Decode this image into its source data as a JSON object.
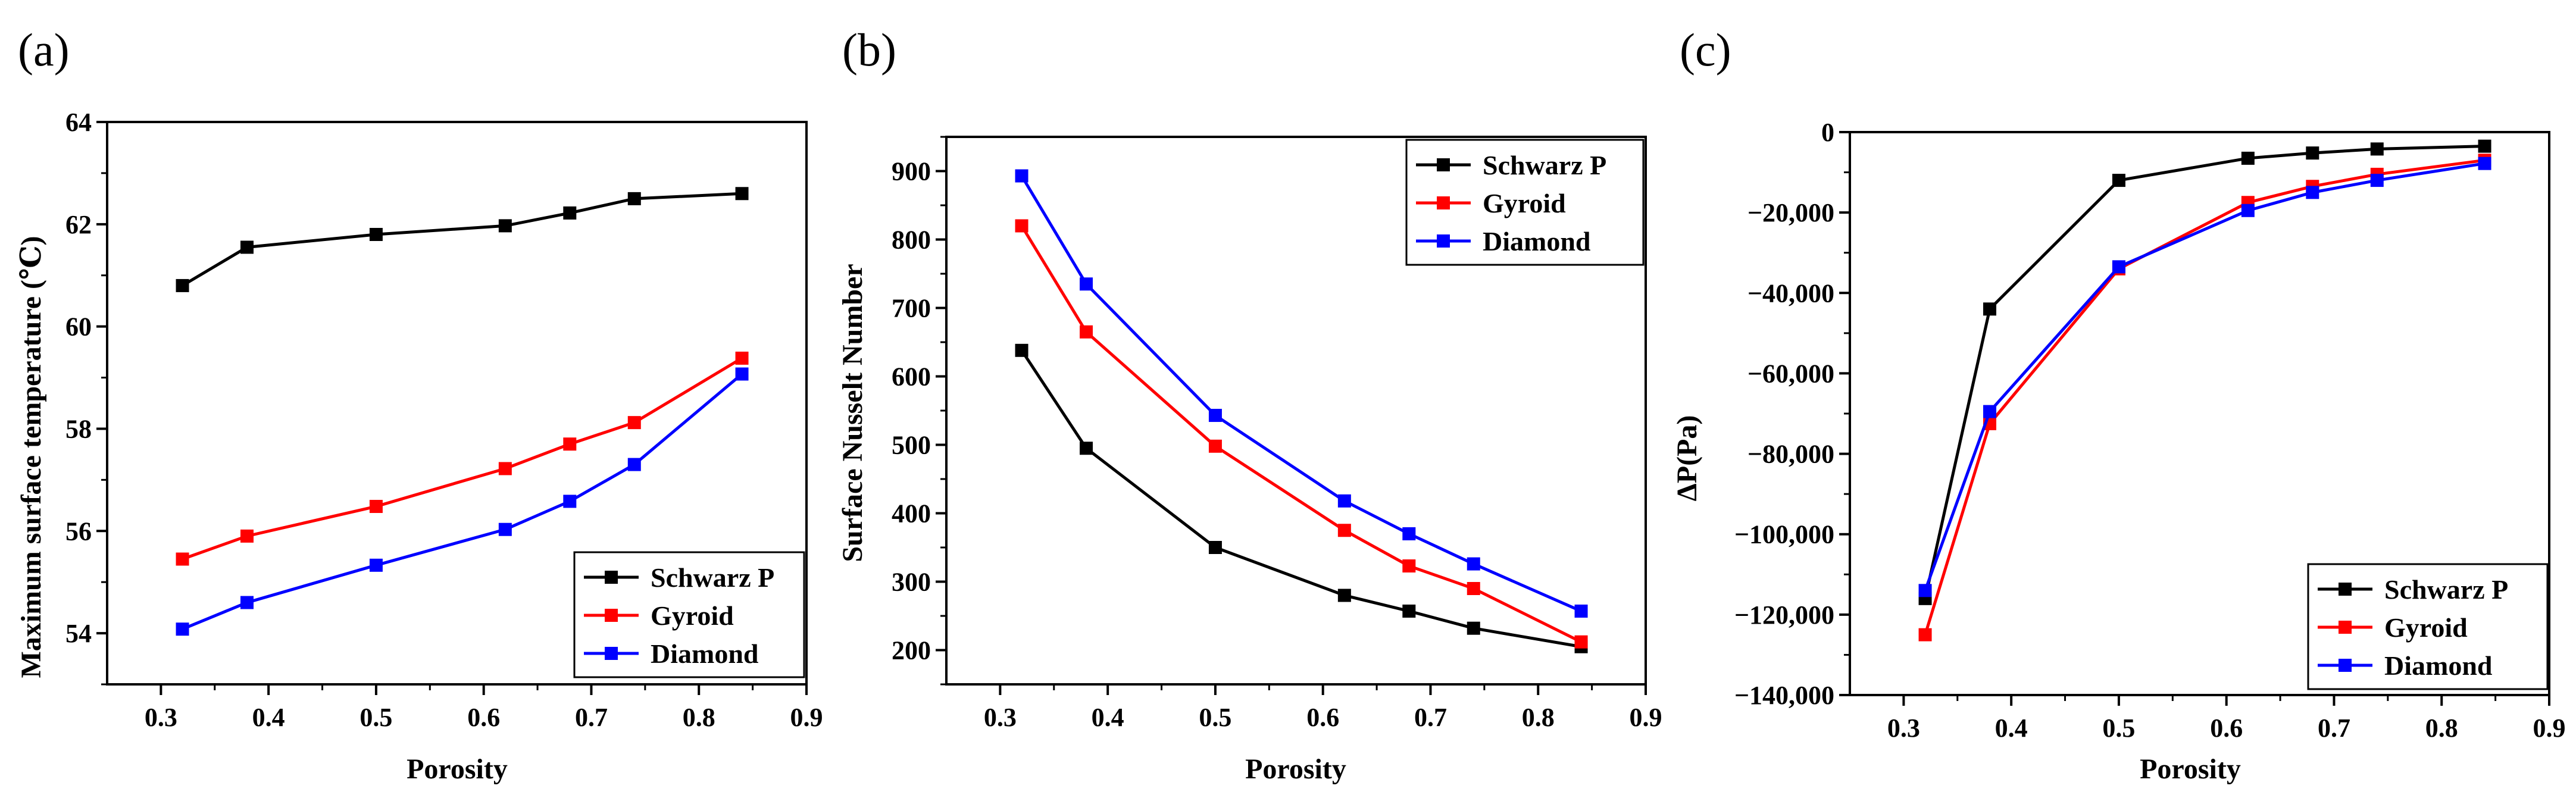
{
  "chart_data": [
    {
      "type": "line",
      "panel_label": "(a)",
      "xlabel": "Porosity",
      "ylabel": "Maximum surface temperature (℃)",
      "xlim": [
        0.25,
        0.9
      ],
      "ylim": [
        53,
        64
      ],
      "xticks": [
        "0.3",
        "0.4",
        "0.5",
        "0.6",
        "0.7",
        "0.8",
        "0.9"
      ],
      "xtick_values": [
        0.3,
        0.4,
        0.5,
        0.6,
        0.7,
        0.8,
        0.9
      ],
      "yticks": [
        "54",
        "56",
        "58",
        "60",
        "62",
        "64"
      ],
      "ytick_values": [
        54,
        56,
        58,
        60,
        62,
        64
      ],
      "legend_position": "bottom-right",
      "x": [
        0.32,
        0.38,
        0.5,
        0.62,
        0.68,
        0.74,
        0.84
      ],
      "series": [
        {
          "name": "Schwarz P",
          "color": "#000000",
          "values": [
            60.8,
            61.55,
            61.8,
            61.97,
            62.22,
            62.5,
            62.6
          ]
        },
        {
          "name": "Gyroid",
          "color": "#ff0000",
          "values": [
            55.45,
            55.9,
            56.48,
            57.22,
            57.7,
            58.12,
            59.38
          ]
        },
        {
          "name": "Diamond",
          "color": "#0000ff",
          "values": [
            54.08,
            54.6,
            55.33,
            56.03,
            56.58,
            57.3,
            59.07
          ]
        }
      ]
    },
    {
      "type": "line",
      "panel_label": "(b)",
      "xlabel": "Porosity",
      "ylabel": "Surface Nusselt Number",
      "xlim": [
        0.25,
        0.9
      ],
      "ylim": [
        150,
        950
      ],
      "xticks": [
        "0.3",
        "0.4",
        "0.5",
        "0.6",
        "0.7",
        "0.8",
        "0.9"
      ],
      "xtick_values": [
        0.3,
        0.4,
        0.5,
        0.6,
        0.7,
        0.8,
        0.9
      ],
      "yticks": [
        "200",
        "300",
        "400",
        "500",
        "600",
        "700",
        "800",
        "900"
      ],
      "ytick_values": [
        200,
        300,
        400,
        500,
        600,
        700,
        800,
        900
      ],
      "legend_position": "top-right",
      "x": [
        0.32,
        0.38,
        0.5,
        0.62,
        0.68,
        0.74,
        0.84
      ],
      "series": [
        {
          "name": "Schwarz P",
          "color": "#000000",
          "values": [
            638,
            495,
            350,
            280,
            257,
            232,
            205
          ]
        },
        {
          "name": "Gyroid",
          "color": "#ff0000",
          "values": [
            820,
            665,
            498,
            375,
            323,
            290,
            212
          ]
        },
        {
          "name": "Diamond",
          "color": "#0000ff",
          "values": [
            893,
            735,
            543,
            418,
            370,
            326,
            257
          ]
        }
      ]
    },
    {
      "type": "line",
      "panel_label": "(c)",
      "xlabel": "Porosity",
      "ylabel": "ΔP(Pa)",
      "xlim": [
        0.25,
        0.9
      ],
      "ylim": [
        -140000,
        0
      ],
      "xticks": [
        "0.3",
        "0.4",
        "0.5",
        "0.6",
        "0.7",
        "0.8",
        "0.9"
      ],
      "xtick_values": [
        0.3,
        0.4,
        0.5,
        0.6,
        0.7,
        0.8,
        0.9
      ],
      "yticks": [
        "0",
        "−20,000",
        "−40,000",
        "−60,000",
        "−80,000",
        "−100,000",
        "−120,000",
        "−140,000"
      ],
      "ytick_values": [
        0,
        -20000,
        -40000,
        -60000,
        -80000,
        -100000,
        -120000,
        -140000
      ],
      "legend_position": "bottom-right",
      "x": [
        0.32,
        0.38,
        0.5,
        0.62,
        0.68,
        0.74,
        0.84
      ],
      "series": [
        {
          "name": "Schwarz P",
          "color": "#000000",
          "values": [
            -116000,
            -44000,
            -12000,
            -6500,
            -5200,
            -4200,
            -3500
          ]
        },
        {
          "name": "Gyroid",
          "color": "#ff0000",
          "values": [
            -125000,
            -72500,
            -34000,
            -17500,
            -13500,
            -10500,
            -7000
          ]
        },
        {
          "name": "Diamond",
          "color": "#0000ff",
          "values": [
            -114000,
            -69500,
            -33500,
            -19500,
            -15000,
            -12000,
            -7800
          ]
        }
      ]
    }
  ]
}
